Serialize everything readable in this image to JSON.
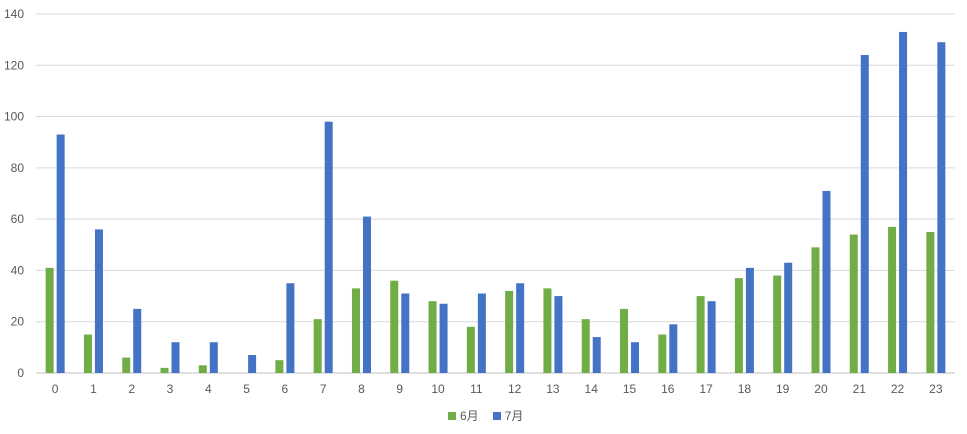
{
  "chart_data": {
    "type": "bar",
    "categories": [
      "0",
      "1",
      "2",
      "3",
      "4",
      "5",
      "6",
      "7",
      "8",
      "9",
      "10",
      "11",
      "12",
      "13",
      "14",
      "15",
      "16",
      "17",
      "18",
      "19",
      "20",
      "21",
      "22",
      "23"
    ],
    "series": [
      {
        "name": "6月",
        "color": "#70ad47",
        "values": [
          41,
          15,
          6,
          2,
          3,
          0,
          5,
          21,
          33,
          36,
          28,
          18,
          32,
          33,
          21,
          25,
          15,
          30,
          37,
          38,
          49,
          54,
          57,
          55
        ]
      },
      {
        "name": "7月",
        "color": "#4472c4",
        "values": [
          93,
          56,
          25,
          12,
          12,
          7,
          35,
          98,
          61,
          31,
          27,
          31,
          35,
          30,
          14,
          12,
          19,
          28,
          41,
          43,
          71,
          124,
          133,
          129
        ]
      }
    ],
    "yticks": [
      "0",
      "20",
      "40",
      "60",
      "80",
      "100",
      "120",
      "140"
    ],
    "ylim": [
      0,
      140
    ],
    "grid": true,
    "legend_position": "bottom"
  }
}
